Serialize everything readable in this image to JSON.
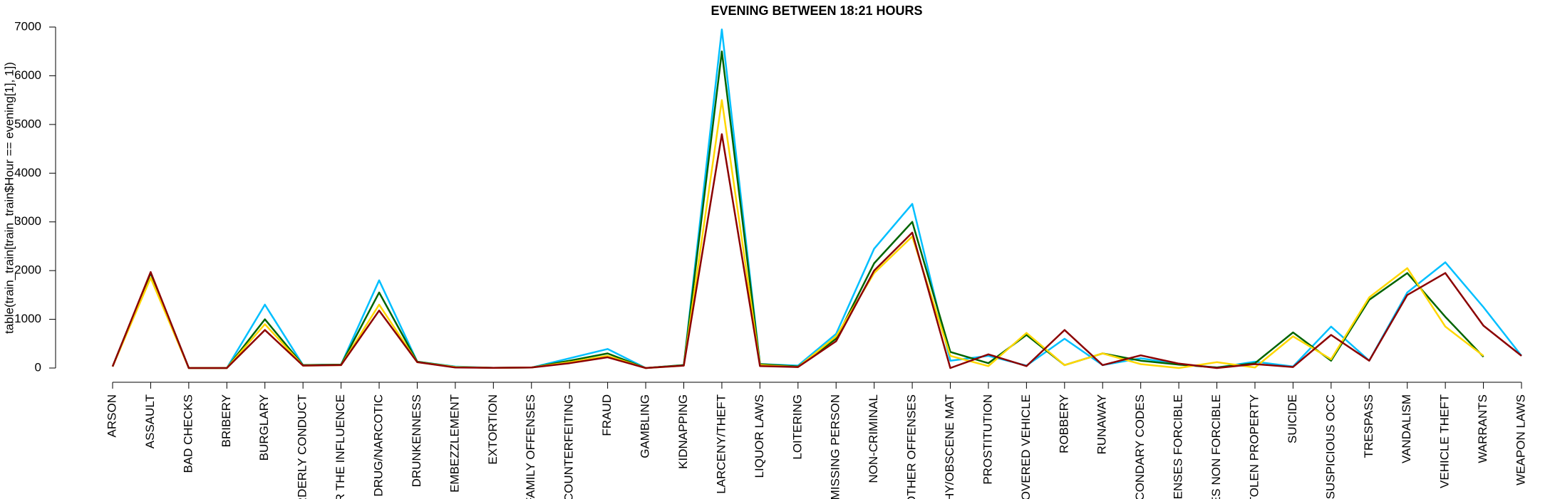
{
  "chart_data": {
    "type": "line",
    "title": "EVENING BETWEEN 18:21 HOURS",
    "y_label": "table(train_train[train_train$Hour == evening[1], 1])",
    "categories": [
      "ARSON",
      "ASSAULT",
      "BAD CHECKS",
      "BRIBERY",
      "BURGLARY",
      "RDERLY CONDUCT",
      "ER THE INFLUENCE",
      "DRUG/NARCOTIC",
      "DRUNKENNESS",
      "EMBEZZLEMENT",
      "EXTORTION",
      "FAMILY OFFENSES",
      "Y/COUNTERFEITING",
      "FRAUD",
      "GAMBLING",
      "KIDNAPPING",
      "LARCENY/THEFT",
      "LIQUOR LAWS",
      "LOITERING",
      "MISSING PERSON",
      "NON-CRIMINAL",
      "OTHER OFFENSES",
      "PHY/OBSCENE MAT",
      "PROSTITUTION",
      "COVERED VEHICLE",
      "ROBBERY",
      "RUNAWAY",
      "ECONDARY CODES",
      "FFENSES FORCIBLE",
      "SES NON FORCIBLE",
      "STOLEN PROPERTY",
      "SUICIDE",
      "SUSPICIOUS OCC",
      "TRESPASS",
      "VANDALISM",
      "VEHICLE THEFT",
      "WARRANTS",
      "WEAPON LAWS"
    ],
    "series": [
      {
        "color": "#00bfff",
        "values": [
          30,
          1950,
          0,
          0,
          1300,
          60,
          70,
          1800,
          130,
          30,
          5,
          10,
          200,
          390,
          0,
          60,
          6950,
          80,
          50,
          700,
          2450,
          3370,
          150,
          250,
          50,
          600,
          60,
          200,
          80,
          10,
          130,
          30,
          850,
          150,
          1550,
          2170,
          1250,
          250
        ]
      },
      {
        "color": "#006400",
        "values": [
          30,
          1950,
          0,
          0,
          1000,
          60,
          70,
          1550,
          130,
          20,
          5,
          10,
          150,
          300,
          0,
          60,
          6500,
          80,
          30,
          600,
          2150,
          3000,
          330,
          100,
          680,
          60,
          300,
          150,
          70,
          10,
          100,
          730,
          150,
          1400,
          1950,
          1050,
          230,
          null
        ]
      },
      {
        "color": "#ffd700",
        "values": [
          30,
          1850,
          0,
          0,
          900,
          50,
          60,
          1300,
          120,
          20,
          5,
          10,
          120,
          250,
          0,
          50,
          5500,
          60,
          20,
          650,
          1950,
          2700,
          250,
          40,
          720,
          60,
          300,
          80,
          0,
          120,
          10,
          650,
          180,
          1450,
          2050,
          850,
          250,
          null
        ]
      },
      {
        "color": "#8b0000",
        "values": [
          30,
          1970,
          0,
          0,
          780,
          50,
          60,
          1180,
          120,
          10,
          5,
          10,
          100,
          220,
          0,
          50,
          4800,
          40,
          20,
          550,
          2000,
          2780,
          0,
          280,
          40,
          780,
          60,
          260,
          90,
          0,
          80,
          20,
          680,
          150,
          1500,
          1950,
          870,
          250
        ]
      }
    ],
    "ylim": [
      0,
      7000
    ],
    "yticks": [
      0,
      1000,
      2000,
      3000,
      4000,
      5000,
      6000,
      7000
    ]
  }
}
